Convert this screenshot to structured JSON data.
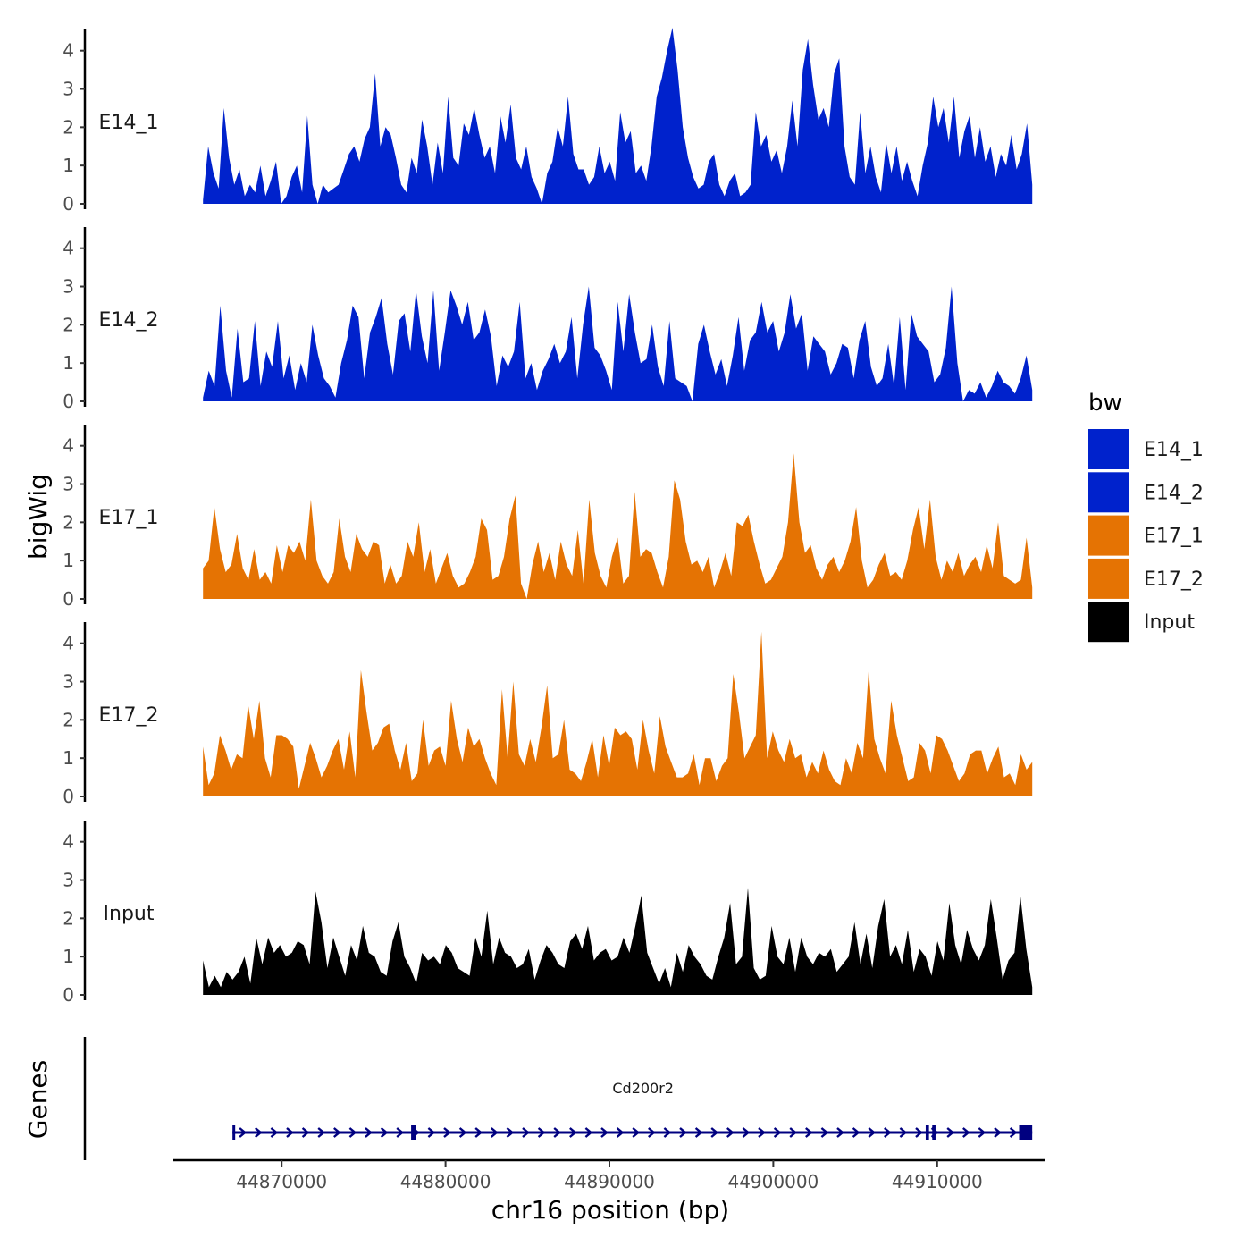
{
  "chart_data": {
    "type": "area",
    "chromosome": "chr16",
    "xlabel": "chr16 position (bp)",
    "ylabel": "bigWig",
    "genes_panel_label": "Genes",
    "xlim": [
      44863500,
      44916500
    ],
    "ylim": [
      0,
      4.6
    ],
    "x_ticks": [
      44870000,
      44880000,
      44890000,
      44900000,
      44910000
    ],
    "x_tick_labels": [
      "44870000",
      "44880000",
      "44890000",
      "44900000",
      "44910000"
    ],
    "y_ticks": [
      0,
      1,
      2,
      3,
      4
    ],
    "y_tick_labels": [
      "0",
      "1",
      "2",
      "3",
      "4"
    ],
    "legend": {
      "title": "bw",
      "position": "right",
      "entries": [
        {
          "label": "E14_1",
          "color": "#0022cc"
        },
        {
          "label": "E14_2",
          "color": "#0022cc"
        },
        {
          "label": "E17_1",
          "color": "#e57303"
        },
        {
          "label": "E17_2",
          "color": "#e57303"
        },
        {
          "label": "Input",
          "color": "#000000"
        }
      ]
    },
    "x_start": 44865200,
    "x_end": 44915800,
    "series": [
      {
        "name": "E14_1",
        "color": "#0022cc",
        "values": [
          0.1,
          1.5,
          0.8,
          0.4,
          2.5,
          1.2,
          0.5,
          0.9,
          0.2,
          0.5,
          0.3,
          1.0,
          0.2,
          0.6,
          1.1,
          0.0,
          0.2,
          0.7,
          1.0,
          0.3,
          2.3,
          0.5,
          0.0,
          0.5,
          0.3,
          0.4,
          0.5,
          0.9,
          1.3,
          1.5,
          1.1,
          1.7,
          2.0,
          3.4,
          1.5,
          2.0,
          1.8,
          1.2,
          0.5,
          0.3,
          1.2,
          0.8,
          2.2,
          1.5,
          0.5,
          1.6,
          0.8,
          2.8,
          1.2,
          1.0,
          2.1,
          1.8,
          2.5,
          1.8,
          1.2,
          1.5,
          0.8,
          2.3,
          1.6,
          2.6,
          1.2,
          0.9,
          1.5,
          0.7,
          0.4,
          0.0,
          0.8,
          1.1,
          2.0,
          1.5,
          2.8,
          1.3,
          0.9,
          0.9,
          0.5,
          0.7,
          1.5,
          0.8,
          1.1,
          0.6,
          2.4,
          1.6,
          1.9,
          0.8,
          1.0,
          0.6,
          1.5,
          2.8,
          3.3,
          4.0,
          4.6,
          3.5,
          2.0,
          1.2,
          0.7,
          0.4,
          0.5,
          1.1,
          1.3,
          0.5,
          0.2,
          0.6,
          0.8,
          0.2,
          0.3,
          0.5,
          2.4,
          1.5,
          1.8,
          1.1,
          1.4,
          0.8,
          1.5,
          2.7,
          1.5,
          3.5,
          4.3,
          3.1,
          2.2,
          2.5,
          2.0,
          3.4,
          3.8,
          1.5,
          0.7,
          0.5,
          2.4,
          0.8,
          1.5,
          0.7,
          0.3,
          1.6,
          0.8,
          1.5,
          0.6,
          1.1,
          0.6,
          0.2,
          1.0,
          1.6,
          2.8,
          2.0,
          2.5,
          1.6,
          2.8,
          1.2,
          1.9,
          2.3,
          1.2,
          2.0,
          1.1,
          1.5,
          0.7,
          1.3,
          1.0,
          1.8,
          0.9,
          1.3,
          2.1,
          0.5
        ]
      },
      {
        "name": "E14_2",
        "color": "#0022cc",
        "values": [
          0.1,
          0.8,
          0.4,
          2.5,
          0.8,
          0.1,
          1.9,
          0.5,
          0.6,
          2.1,
          0.4,
          1.3,
          0.9,
          2.1,
          0.6,
          1.2,
          0.3,
          1.0,
          0.5,
          2.0,
          1.2,
          0.6,
          0.4,
          0.1,
          1.0,
          1.6,
          2.5,
          2.2,
          0.6,
          1.8,
          2.2,
          2.7,
          1.5,
          0.7,
          2.1,
          2.3,
          1.3,
          2.9,
          1.7,
          1.0,
          2.9,
          0.8,
          1.8,
          2.9,
          2.5,
          2.0,
          2.6,
          1.6,
          1.8,
          2.4,
          1.7,
          0.4,
          1.2,
          0.9,
          1.3,
          2.6,
          0.6,
          1.0,
          0.3,
          0.8,
          1.1,
          1.5,
          1.0,
          1.3,
          2.2,
          0.6,
          2.0,
          3.0,
          1.4,
          1.2,
          0.8,
          0.3,
          2.6,
          1.3,
          2.8,
          1.8,
          1.0,
          1.1,
          2.0,
          0.9,
          0.4,
          2.1,
          0.6,
          0.5,
          0.4,
          0.0,
          1.5,
          2.0,
          1.3,
          0.7,
          1.1,
          0.4,
          1.2,
          2.2,
          0.8,
          1.6,
          1.8,
          2.6,
          1.8,
          2.1,
          1.3,
          1.8,
          2.8,
          1.9,
          2.3,
          0.8,
          1.7,
          1.5,
          1.3,
          0.7,
          1.0,
          1.5,
          1.4,
          0.6,
          1.6,
          2.1,
          0.9,
          0.4,
          0.6,
          1.5,
          0.4,
          2.2,
          0.3,
          2.3,
          1.7,
          1.5,
          1.3,
          0.5,
          0.7,
          1.4,
          3.0,
          1.0,
          0.0,
          0.3,
          0.2,
          0.5,
          0.1,
          0.4,
          0.8,
          0.5,
          0.4,
          0.2,
          0.6,
          1.2,
          0.3
        ]
      },
      {
        "name": "E17_1",
        "color": "#e57303",
        "values": [
          0.8,
          1.0,
          2.4,
          1.3,
          0.7,
          0.9,
          1.7,
          0.8,
          0.5,
          1.3,
          0.5,
          0.7,
          0.4,
          1.4,
          0.7,
          1.4,
          1.2,
          1.5,
          1.0,
          2.6,
          1.0,
          0.6,
          0.4,
          0.7,
          2.1,
          1.1,
          0.7,
          1.7,
          1.3,
          1.1,
          1.5,
          1.4,
          0.4,
          0.9,
          0.4,
          0.6,
          1.5,
          1.1,
          2.0,
          0.7,
          1.3,
          0.4,
          0.8,
          1.2,
          0.6,
          0.3,
          0.4,
          0.7,
          1.1,
          2.1,
          1.8,
          0.5,
          0.6,
          1.1,
          2.1,
          2.7,
          0.4,
          0.0,
          0.9,
          1.5,
          0.7,
          1.2,
          0.5,
          1.5,
          0.9,
          0.6,
          1.8,
          0.4,
          2.6,
          1.2,
          0.6,
          0.3,
          1.1,
          1.6,
          0.4,
          0.6,
          2.8,
          1.1,
          1.3,
          1.2,
          0.7,
          0.3,
          1.1,
          3.1,
          2.6,
          1.5,
          0.9,
          1.0,
          0.7,
          1.1,
          0.3,
          0.7,
          1.2,
          0.6,
          2.0,
          1.9,
          2.2,
          1.5,
          0.9,
          0.4,
          0.5,
          0.8,
          1.1,
          2.0,
          3.8,
          2.0,
          1.2,
          1.4,
          0.8,
          0.5,
          0.9,
          1.1,
          0.7,
          1.0,
          1.5,
          2.4,
          1.0,
          0.3,
          0.5,
          0.9,
          1.2,
          0.6,
          0.7,
          0.5,
          1.0,
          1.8,
          2.4,
          1.3,
          2.6,
          1.1,
          0.5,
          1.0,
          0.7,
          1.2,
          0.6,
          0.9,
          1.1,
          0.7,
          1.4,
          0.8,
          2.0,
          0.6,
          0.5,
          0.4,
          0.5,
          1.6,
          0.3
        ]
      },
      {
        "name": "E17_2",
        "color": "#e57303",
        "values": [
          1.3,
          0.3,
          0.6,
          1.6,
          1.2,
          0.7,
          1.1,
          1.0,
          2.4,
          1.5,
          2.5,
          1.0,
          0.5,
          1.6,
          1.6,
          1.5,
          1.3,
          0.2,
          0.8,
          1.4,
          1.0,
          0.5,
          0.8,
          1.2,
          1.5,
          0.7,
          1.7,
          0.5,
          3.3,
          2.2,
          1.2,
          1.4,
          1.8,
          1.9,
          1.2,
          0.7,
          1.4,
          0.4,
          0.6,
          2.0,
          0.8,
          1.2,
          1.3,
          0.8,
          2.5,
          1.5,
          0.9,
          1.8,
          1.3,
          1.5,
          1.0,
          0.6,
          0.3,
          2.8,
          1.0,
          3.0,
          1.1,
          0.8,
          1.5,
          0.9,
          1.8,
          2.9,
          1.0,
          1.1,
          2.0,
          0.7,
          0.6,
          0.4,
          0.9,
          1.5,
          0.5,
          1.6,
          0.8,
          1.8,
          1.6,
          1.7,
          1.5,
          0.7,
          2.0,
          1.2,
          0.6,
          2.1,
          1.3,
          0.9,
          0.5,
          0.5,
          0.6,
          1.1,
          0.3,
          1.0,
          1.0,
          0.4,
          0.8,
          1.0,
          3.2,
          2.2,
          1.0,
          1.3,
          1.6,
          4.3,
          1.0,
          1.7,
          1.2,
          0.9,
          1.5,
          1.0,
          1.1,
          0.5,
          0.9,
          0.6,
          1.2,
          0.7,
          0.4,
          0.3,
          1.0,
          0.6,
          1.4,
          1.0,
          3.3,
          1.5,
          1.0,
          0.6,
          2.5,
          1.6,
          1.0,
          0.4,
          0.5,
          1.4,
          1.2,
          0.6,
          1.6,
          1.5,
          1.2,
          0.8,
          0.4,
          0.6,
          1.1,
          1.2,
          1.2,
          0.6,
          1.0,
          1.3,
          0.5,
          0.6,
          0.3,
          1.1,
          0.7,
          0.9
        ]
      },
      {
        "name": "Input",
        "color": "#000000",
        "values": [
          0.9,
          0.2,
          0.5,
          0.2,
          0.6,
          0.4,
          0.6,
          1.0,
          0.3,
          1.5,
          0.8,
          1.5,
          1.1,
          1.3,
          1.0,
          1.1,
          1.4,
          1.3,
          0.8,
          2.7,
          1.9,
          0.7,
          1.5,
          1.0,
          0.5,
          1.3,
          0.9,
          1.8,
          1.1,
          1.0,
          0.6,
          0.5,
          1.4,
          1.9,
          1.0,
          0.7,
          0.3,
          1.1,
          0.9,
          1.0,
          0.8,
          1.3,
          1.1,
          0.7,
          0.6,
          0.5,
          1.5,
          1.0,
          2.2,
          0.8,
          1.5,
          1.1,
          1.0,
          0.7,
          0.8,
          1.2,
          0.4,
          0.9,
          1.3,
          1.1,
          0.8,
          0.7,
          1.4,
          1.6,
          1.2,
          1.8,
          0.9,
          1.1,
          1.2,
          0.9,
          1.0,
          1.5,
          1.1,
          1.8,
          2.6,
          1.1,
          0.7,
          0.3,
          0.7,
          0.2,
          1.1,
          0.6,
          1.3,
          1.0,
          0.8,
          0.5,
          0.4,
          1.0,
          1.5,
          2.4,
          0.8,
          1.0,
          2.8,
          0.7,
          0.4,
          0.5,
          1.8,
          1.0,
          0.8,
          1.5,
          0.6,
          1.5,
          1.0,
          0.8,
          1.1,
          1.0,
          1.2,
          0.6,
          0.8,
          1.0,
          1.9,
          0.8,
          1.6,
          0.7,
          1.8,
          2.5,
          1.0,
          1.3,
          0.8,
          1.7,
          0.6,
          1.2,
          1.0,
          0.5,
          1.4,
          0.9,
          2.4,
          1.3,
          0.8,
          1.7,
          1.2,
          0.9,
          1.3,
          2.5,
          1.5,
          0.4,
          0.9,
          1.1,
          2.6,
          1.2,
          0.2
        ]
      }
    ],
    "genes": [
      {
        "name": "Cd200r2",
        "start": 44867000,
        "end": 44915800,
        "strand": "+",
        "color": "#000080",
        "exons": [
          [
            44867000,
            44867100
          ],
          [
            44877900,
            44878200
          ],
          [
            44909300,
            44909500
          ],
          [
            44909700,
            44909900
          ],
          [
            44915000,
            44915800
          ]
        ]
      }
    ]
  }
}
